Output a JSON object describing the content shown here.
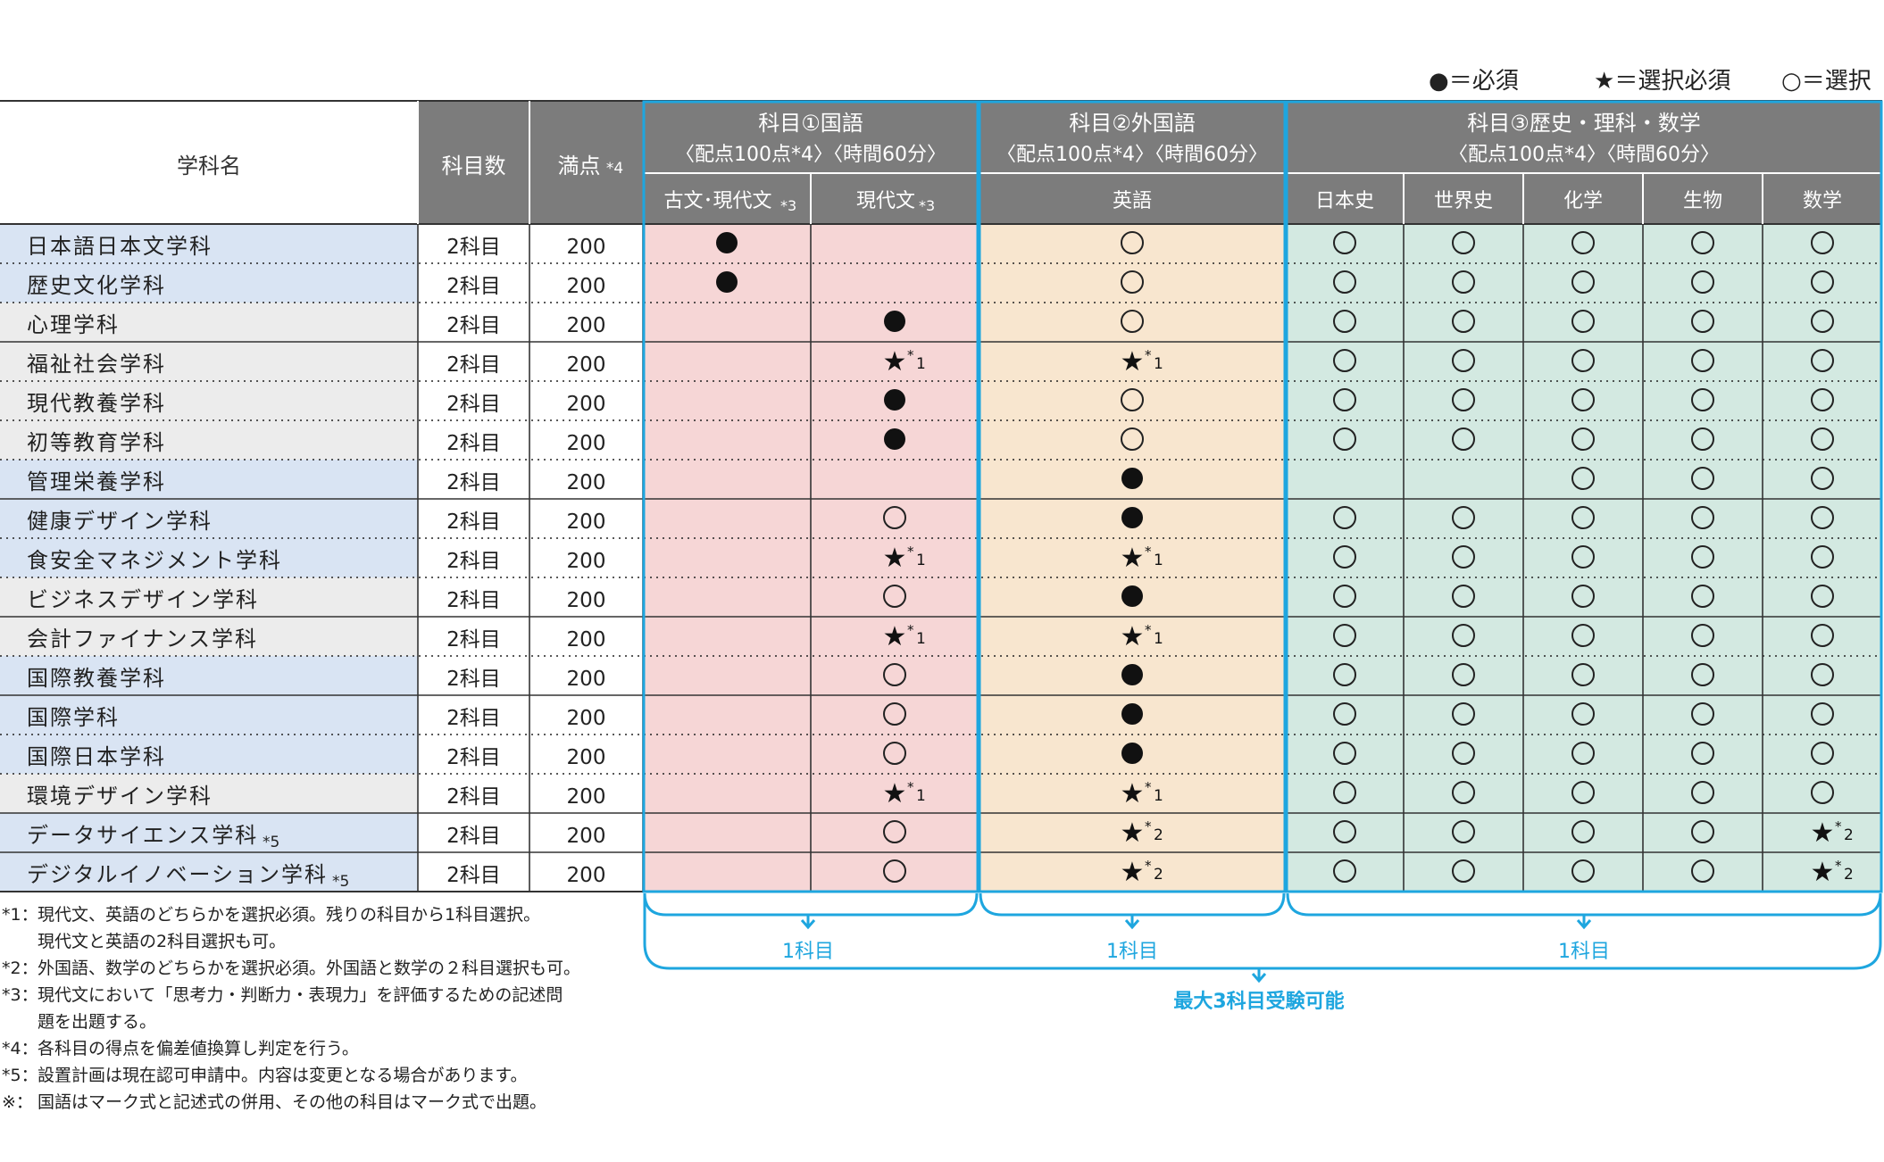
{
  "legend": [
    {
      "symbol": "●",
      "text": "＝必須"
    },
    {
      "symbol": "★",
      "text": "＝選択必須"
    },
    {
      "symbol": "○",
      "text": "＝選択"
    }
  ],
  "header": {
    "dept": "学科名",
    "count": "科目数",
    "max_label": "満点",
    "max_note": "*4",
    "group1": {
      "title": "科目①国語",
      "sub": "〈配点100点*4〉〈時間60分〉"
    },
    "group2": {
      "title": "科目②外国語",
      "sub": "〈配点100点*4〉〈時間60分〉"
    },
    "group3": {
      "title": "科目③歴史・理科・数学",
      "sub": "〈配点100点*4〉〈時間60分〉"
    },
    "subjects": [
      {
        "label": "古文･現代文",
        "note": "*3"
      },
      {
        "label": "現代文",
        "note": "*3"
      },
      {
        "label": "英語",
        "note": ""
      },
      {
        "label": "日本史",
        "note": ""
      },
      {
        "label": "世界史",
        "note": ""
      },
      {
        "label": "化学",
        "note": ""
      },
      {
        "label": "生物",
        "note": ""
      },
      {
        "label": "数学",
        "note": ""
      }
    ]
  },
  "rows": [
    {
      "name": "日本語日本文学科",
      "name_note": "",
      "count": "2科目",
      "max": "200",
      "cells": [
        "req",
        "",
        "opt",
        "opt",
        "opt",
        "opt",
        "opt",
        "opt"
      ],
      "notes": [
        "",
        "",
        "",
        "",
        "",
        "",
        "",
        ""
      ]
    },
    {
      "name": "歴史文化学科",
      "name_note": "",
      "count": "2科目",
      "max": "200",
      "cells": [
        "req",
        "",
        "opt",
        "opt",
        "opt",
        "opt",
        "opt",
        "opt"
      ],
      "notes": [
        "",
        "",
        "",
        "",
        "",
        "",
        "",
        ""
      ]
    },
    {
      "name": "心理学科",
      "name_note": "",
      "count": "2科目",
      "max": "200",
      "cells": [
        "",
        "req",
        "opt",
        "opt",
        "opt",
        "opt",
        "opt",
        "opt"
      ],
      "notes": [
        "",
        "",
        "",
        "",
        "",
        "",
        "",
        ""
      ]
    },
    {
      "name": "福祉社会学科",
      "name_note": "",
      "count": "2科目",
      "max": "200",
      "cells": [
        "",
        "sel",
        "sel",
        "opt",
        "opt",
        "opt",
        "opt",
        "opt"
      ],
      "notes": [
        "",
        "*1",
        "*1",
        "",
        "",
        "",
        "",
        ""
      ]
    },
    {
      "name": "現代教養学科",
      "name_note": "",
      "count": "2科目",
      "max": "200",
      "cells": [
        "",
        "req",
        "opt",
        "opt",
        "opt",
        "opt",
        "opt",
        "opt"
      ],
      "notes": [
        "",
        "",
        "",
        "",
        "",
        "",
        "",
        ""
      ]
    },
    {
      "name": "初等教育学科",
      "name_note": "",
      "count": "2科目",
      "max": "200",
      "cells": [
        "",
        "req",
        "opt",
        "opt",
        "opt",
        "opt",
        "opt",
        "opt"
      ],
      "notes": [
        "",
        "",
        "",
        "",
        "",
        "",
        "",
        ""
      ]
    },
    {
      "name": "管理栄養学科",
      "name_note": "",
      "count": "2科目",
      "max": "200",
      "cells": [
        "",
        "",
        "req",
        "",
        "",
        "opt",
        "opt",
        "opt"
      ],
      "notes": [
        "",
        "",
        "",
        "",
        "",
        "",
        "",
        ""
      ]
    },
    {
      "name": "健康デザイン学科",
      "name_note": "",
      "count": "2科目",
      "max": "200",
      "cells": [
        "",
        "opt",
        "req",
        "opt",
        "opt",
        "opt",
        "opt",
        "opt"
      ],
      "notes": [
        "",
        "",
        "",
        "",
        "",
        "",
        "",
        ""
      ]
    },
    {
      "name": "食安全マネジメント学科",
      "name_note": "",
      "count": "2科目",
      "max": "200",
      "cells": [
        "",
        "sel",
        "sel",
        "opt",
        "opt",
        "opt",
        "opt",
        "opt"
      ],
      "notes": [
        "",
        "*1",
        "*1",
        "",
        "",
        "",
        "",
        ""
      ]
    },
    {
      "name": "ビジネスデザイン学科",
      "name_note": "",
      "count": "2科目",
      "max": "200",
      "cells": [
        "",
        "opt",
        "req",
        "opt",
        "opt",
        "opt",
        "opt",
        "opt"
      ],
      "notes": [
        "",
        "",
        "",
        "",
        "",
        "",
        "",
        ""
      ]
    },
    {
      "name": "会計ファイナンス学科",
      "name_note": "",
      "count": "2科目",
      "max": "200",
      "cells": [
        "",
        "sel",
        "sel",
        "opt",
        "opt",
        "opt",
        "opt",
        "opt"
      ],
      "notes": [
        "",
        "*1",
        "*1",
        "",
        "",
        "",
        "",
        ""
      ]
    },
    {
      "name": "国際教養学科",
      "name_note": "",
      "count": "2科目",
      "max": "200",
      "cells": [
        "",
        "opt",
        "req",
        "opt",
        "opt",
        "opt",
        "opt",
        "opt"
      ],
      "notes": [
        "",
        "",
        "",
        "",
        "",
        "",
        "",
        ""
      ]
    },
    {
      "name": "国際学科",
      "name_note": "",
      "count": "2科目",
      "max": "200",
      "cells": [
        "",
        "opt",
        "req",
        "opt",
        "opt",
        "opt",
        "opt",
        "opt"
      ],
      "notes": [
        "",
        "",
        "",
        "",
        "",
        "",
        "",
        ""
      ]
    },
    {
      "name": "国際日本学科",
      "name_note": "",
      "count": "2科目",
      "max": "200",
      "cells": [
        "",
        "opt",
        "req",
        "opt",
        "opt",
        "opt",
        "opt",
        "opt"
      ],
      "notes": [
        "",
        "",
        "",
        "",
        "",
        "",
        "",
        ""
      ]
    },
    {
      "name": "環境デザイン学科",
      "name_note": "",
      "count": "2科目",
      "max": "200",
      "cells": [
        "",
        "sel",
        "sel",
        "opt",
        "opt",
        "opt",
        "opt",
        "opt"
      ],
      "notes": [
        "",
        "*1",
        "*1",
        "",
        "",
        "",
        "",
        ""
      ]
    },
    {
      "name": "データサイエンス学科",
      "name_note": "*5",
      "count": "2科目",
      "max": "200",
      "cells": [
        "",
        "opt",
        "sel",
        "opt",
        "opt",
        "opt",
        "opt",
        "sel"
      ],
      "notes": [
        "",
        "",
        "*2",
        "",
        "",
        "",
        "",
        "*2"
      ]
    },
    {
      "name": "デジタルイノベーション学科",
      "name_note": "*5",
      "count": "2科目",
      "max": "200",
      "cells": [
        "",
        "opt",
        "sel",
        "opt",
        "opt",
        "opt",
        "opt",
        "sel"
      ],
      "notes": [
        "",
        "",
        "*2",
        "",
        "",
        "",
        "",
        "*2"
      ]
    }
  ],
  "symbols": {
    "req": "●",
    "sel": "★",
    "opt": "○"
  },
  "colors": {
    "header_dark": "#7c7c7c",
    "header_light": "#ffffff",
    "dept_blue": "#d9e4f3",
    "dept_gray": "#ececec",
    "g1_bg": "#f6d6d6",
    "g2_bg": "#f8e6cf",
    "g3_bg": "#d3e9e1",
    "accent": "#1ea6df"
  },
  "brackets": {
    "g1": "1科目",
    "g2": "1科目",
    "g3": "1科目",
    "total": "最大3科目受験可能"
  },
  "notes": [
    {
      "mark": "*1：",
      "lines": [
        "現代文、英語のどちらかを選択必須。残りの科目から1科目選択。",
        "現代文と英語の2科目選択も可。"
      ]
    },
    {
      "mark": "*2：",
      "lines": [
        "外国語、数学のどちらかを選択必須。外国語と数学の２科目選択も可。"
      ]
    },
    {
      "mark": "*3：",
      "lines": [
        "現代文において「思考力・判断力・表現力」を評価するための記述問",
        "題を出題する。"
      ]
    },
    {
      "mark": "*4：",
      "lines": [
        "各科目の得点を偏差値換算し判定を行う。"
      ]
    },
    {
      "mark": "*5：",
      "lines": [
        "設置計画は現在認可申請中。内容は変更となる場合があります。"
      ]
    },
    {
      "mark": "※：",
      "lines": [
        "国語はマーク式と記述式の併用、その他の科目はマーク式で出題。"
      ]
    }
  ]
}
